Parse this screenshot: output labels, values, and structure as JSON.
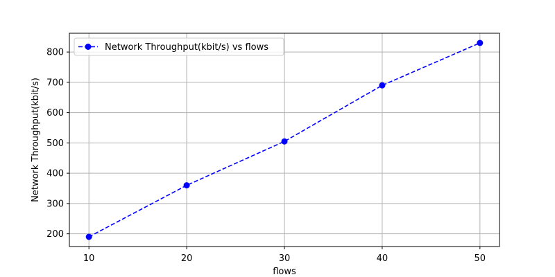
{
  "chart_data": {
    "type": "line",
    "xlabel": "flows",
    "ylabel": "Network Throughput(kbit/s)",
    "x": [
      10,
      20,
      30,
      40,
      50
    ],
    "series": [
      {
        "name": "Network Throughput(kbit/s) vs flows",
        "values": [
          190,
          360,
          505,
          690,
          830
        ],
        "color": "#0000ff",
        "line_style": "dashed",
        "marker": "circle"
      }
    ],
    "xticks": [
      10,
      20,
      30,
      40,
      50
    ],
    "yticks": [
      200,
      300,
      400,
      500,
      600,
      700,
      800
    ],
    "xlim": [
      8,
      52
    ],
    "ylim": [
      158,
      862
    ],
    "grid": true,
    "legend_position": "top-left"
  }
}
